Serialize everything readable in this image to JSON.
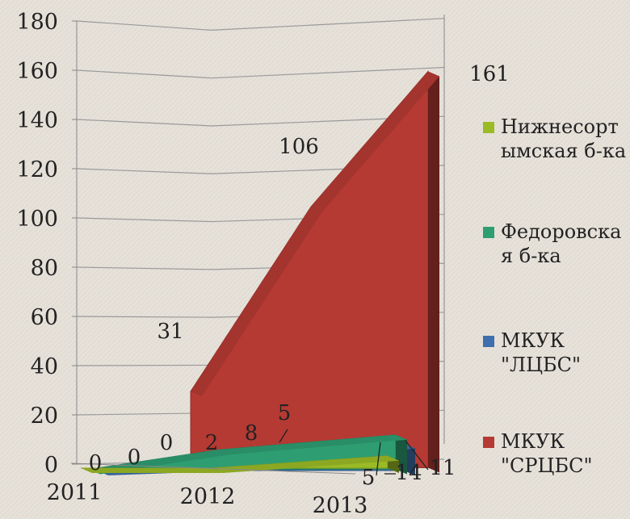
{
  "chart_data": {
    "type": "area",
    "view": "3d",
    "categories": [
      "2011",
      "2012",
      "2013"
    ],
    "ylim": [
      0,
      180
    ],
    "yticks": [
      0,
      20,
      40,
      60,
      80,
      100,
      120,
      140,
      160,
      180
    ],
    "grid": true,
    "legend": "right",
    "series": [
      {
        "name": "Нижнесортымская б-ка",
        "values": [
          0,
          0,
          5
        ],
        "color": "#9bbb26"
      },
      {
        "name": "Федоровская б-ка",
        "values": [
          0,
          8,
          14
        ],
        "color": "#2e9e72"
      },
      {
        "name": "МКУК \"ЛЦБС\"",
        "values": [
          0,
          2,
          11
        ],
        "color": "#3f6fad"
      },
      {
        "name": "МКУК \"СРЦБС\"",
        "values": [
          31,
          106,
          161
        ],
        "color": "#b53a33"
      }
    ],
    "data_labels": [
      "0",
      "0",
      "0",
      "2",
      "8",
      "5",
      "31",
      "106",
      "161",
      "5",
      "14",
      "11"
    ]
  },
  "legend": {
    "items": [
      {
        "lines": [
          "Нижнесорт",
          "ымская б-ка"
        ],
        "color": "#9bbb26"
      },
      {
        "lines": [
          "Федоровска",
          "я б-ка"
        ],
        "color": "#2e9e72"
      },
      {
        "lines": [
          "МКУК",
          "\"ЛЦБС\""
        ],
        "color": "#3f6fad"
      },
      {
        "lines": [
          "МКУК",
          "\"СРЦБС\""
        ],
        "color": "#b53a33"
      }
    ]
  }
}
